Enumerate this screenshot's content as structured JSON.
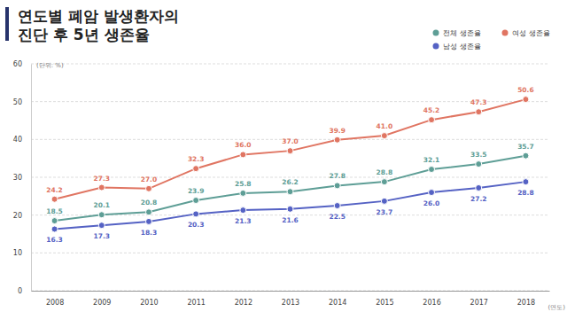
{
  "chart_data": {
    "type": "line",
    "title": "연도별 폐암 발생환자의\n진단 후 5년 생존율",
    "y_label": "(단위: %)",
    "x_label": "(연도)",
    "categories": [
      "2008",
      "2009",
      "2010",
      "2011",
      "2012",
      "2013",
      "2014",
      "2015",
      "2016",
      "2017",
      "2018"
    ],
    "series": [
      {
        "name": "전체 생존율",
        "color": "#5e9e96",
        "values": [
          18.5,
          20.1,
          20.8,
          23.9,
          25.8,
          26.2,
          27.8,
          28.8,
          32.1,
          33.5,
          35.7
        ],
        "value_labels": [
          "18.5",
          "20.1",
          "20.8",
          "23.9",
          "25.8",
          "26.2",
          "27.8",
          "28.8",
          "32.1",
          "33.5",
          "35.7"
        ]
      },
      {
        "name": "여성 생존율",
        "color": "#e07562",
        "values": [
          24.2,
          27.3,
          27.0,
          32.3,
          36.0,
          37.0,
          39.9,
          41.0,
          45.2,
          47.3,
          50.6
        ],
        "value_labels": [
          "24.2",
          "27.3",
          "27.0",
          "32.3",
          "36.0",
          "37.0",
          "39.9",
          "41.0",
          "45.2",
          "47.3",
          "50.6"
        ]
      },
      {
        "name": "남성 생존율",
        "color": "#5562c4",
        "values": [
          16.3,
          17.3,
          18.3,
          20.3,
          21.3,
          21.6,
          22.5,
          23.7,
          26.0,
          27.2,
          28.8
        ],
        "value_labels": [
          "16.3",
          "17.3",
          "18.3",
          "20.3",
          "21.3",
          "21.6",
          "22.5",
          "23.7",
          "26.0",
          "27.2",
          "28.8"
        ]
      }
    ],
    "ylim": [
      0,
      60
    ],
    "yticks": [
      0,
      10,
      20,
      30,
      40,
      50,
      60
    ],
    "grid": true,
    "legend": "upper right",
    "data_labels": true,
    "marker": "circle"
  }
}
